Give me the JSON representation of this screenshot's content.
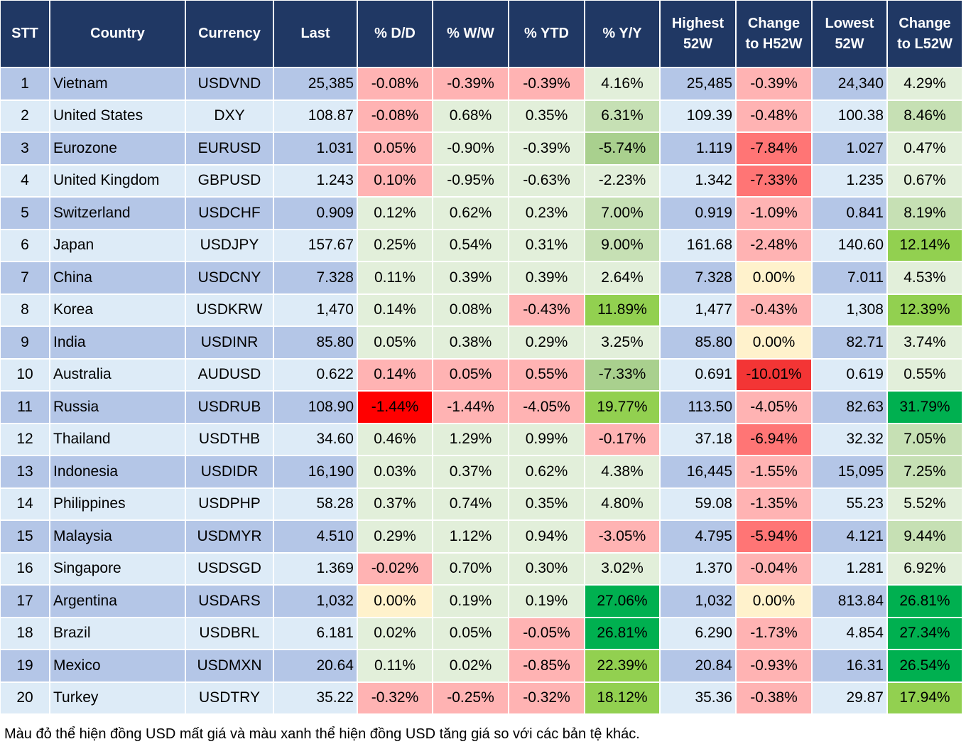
{
  "palette": {
    "P1": "#ffb3b3",
    "P2": "#ff7575",
    "P3": "#f33535",
    "P4": "#ff0000",
    "Y": "#fff2cc",
    "G0": "#e2efda",
    "G1": "#c6e0b4",
    "G2": "#a9d08e",
    "G3": "#92d050",
    "G4": "#00b050",
    "header": "#203864",
    "row_odd": "#b4c6e7",
    "row_even": "#ddebf7"
  },
  "headers": [
    "STT",
    "Country",
    "Currency",
    "Last",
    "% D/D",
    "% W/W",
    "% YTD",
    "% Y/Y",
    "Highest 52W",
    "Change to H52W",
    "Lowest 52W",
    "Change to L52W"
  ],
  "rows": [
    {
      "stt": "1",
      "country": "Vietnam",
      "currency": "USDVND",
      "last": "25,385",
      "dd": "-0.08%",
      "ww": "-0.39%",
      "ytd": "-0.39%",
      "yy": "4.16%",
      "high": "25,485",
      "chh": "-0.39%",
      "low": "24,340",
      "chl": "4.29%",
      "colors": [
        "P1",
        "P1",
        "P1",
        "G0",
        "P1",
        "G0"
      ]
    },
    {
      "stt": "2",
      "country": "United States",
      "currency": "DXY",
      "last": "108.87",
      "dd": "-0.08%",
      "ww": "0.68%",
      "ytd": "0.35%",
      "yy": "6.31%",
      "high": "109.39",
      "chh": "-0.48%",
      "low": "100.38",
      "chl": "8.46%",
      "colors": [
        "P1",
        "G0",
        "G0",
        "G1",
        "P1",
        "G1"
      ]
    },
    {
      "stt": "3",
      "country": "Eurozone",
      "currency": "EURUSD",
      "last": "1.031",
      "dd": "0.05%",
      "ww": "-0.90%",
      "ytd": "-0.39%",
      "yy": "-5.74%",
      "high": "1.119",
      "chh": "-7.84%",
      "low": "1.027",
      "chl": "0.47%",
      "colors": [
        "P1",
        "G0",
        "G0",
        "G2",
        "P2",
        "G0"
      ]
    },
    {
      "stt": "4",
      "country": "United Kingdom",
      "currency": "GBPUSD",
      "last": "1.243",
      "dd": "0.10%",
      "ww": "-0.95%",
      "ytd": "-0.63%",
      "yy": "-2.23%",
      "high": "1.342",
      "chh": "-7.33%",
      "low": "1.235",
      "chl": "0.67%",
      "colors": [
        "P1",
        "G0",
        "G0",
        "G0",
        "P2",
        "G0"
      ]
    },
    {
      "stt": "5",
      "country": "Switzerland",
      "currency": "USDCHF",
      "last": "0.909",
      "dd": "0.12%",
      "ww": "0.62%",
      "ytd": "0.23%",
      "yy": "7.00%",
      "high": "0.919",
      "chh": "-1.09%",
      "low": "0.841",
      "chl": "8.19%",
      "colors": [
        "G0",
        "G0",
        "G0",
        "G1",
        "P1",
        "G1"
      ]
    },
    {
      "stt": "6",
      "country": "Japan",
      "currency": "USDJPY",
      "last": "157.67",
      "dd": "0.25%",
      "ww": "0.54%",
      "ytd": "0.31%",
      "yy": "9.00%",
      "high": "161.68",
      "chh": "-2.48%",
      "low": "140.60",
      "chl": "12.14%",
      "colors": [
        "G0",
        "G0",
        "G0",
        "G1",
        "P1",
        "G3"
      ]
    },
    {
      "stt": "7",
      "country": "China",
      "currency": "USDCNY",
      "last": "7.328",
      "dd": "0.11%",
      "ww": "0.39%",
      "ytd": "0.39%",
      "yy": "2.64%",
      "high": "7.328",
      "chh": "0.00%",
      "low": "7.011",
      "chl": "4.53%",
      "colors": [
        "G0",
        "G0",
        "G0",
        "G0",
        "Y",
        "G0"
      ]
    },
    {
      "stt": "8",
      "country": "Korea",
      "currency": "USDKRW",
      "last": "1,470",
      "dd": "0.14%",
      "ww": "0.08%",
      "ytd": "-0.43%",
      "yy": "11.89%",
      "high": "1,477",
      "chh": "-0.43%",
      "low": "1,308",
      "chl": "12.39%",
      "colors": [
        "G0",
        "G0",
        "P1",
        "G3",
        "P1",
        "G3"
      ]
    },
    {
      "stt": "9",
      "country": "India",
      "currency": "USDINR",
      "last": "85.80",
      "dd": "0.05%",
      "ww": "0.38%",
      "ytd": "0.29%",
      "yy": "3.25%",
      "high": "85.80",
      "chh": "0.00%",
      "low": "82.71",
      "chl": "3.74%",
      "colors": [
        "G0",
        "G0",
        "G0",
        "G0",
        "Y",
        "G0"
      ]
    },
    {
      "stt": "10",
      "country": "Australia",
      "currency": "AUDUSD",
      "last": "0.622",
      "dd": "0.14%",
      "ww": "0.05%",
      "ytd": "0.55%",
      "yy": "-7.33%",
      "high": "0.691",
      "chh": "-10.01%",
      "low": "0.619",
      "chl": "0.55%",
      "colors": [
        "P1",
        "P1",
        "P1",
        "G2",
        "P3",
        "G0"
      ]
    },
    {
      "stt": "11",
      "country": "Russia",
      "currency": "USDRUB",
      "last": "108.90",
      "dd": "-1.44%",
      "ww": "-1.44%",
      "ytd": "-4.05%",
      "yy": "19.77%",
      "high": "113.50",
      "chh": "-4.05%",
      "low": "82.63",
      "chl": "31.79%",
      "colors": [
        "P4",
        "P1",
        "P1",
        "G3",
        "P1",
        "G4"
      ]
    },
    {
      "stt": "12",
      "country": "Thailand",
      "currency": "USDTHB",
      "last": "34.60",
      "dd": "0.46%",
      "ww": "1.29%",
      "ytd": "0.99%",
      "yy": "-0.17%",
      "high": "37.18",
      "chh": "-6.94%",
      "low": "32.32",
      "chl": "7.05%",
      "colors": [
        "G0",
        "G0",
        "G0",
        "P1",
        "P2",
        "G1"
      ]
    },
    {
      "stt": "13",
      "country": "Indonesia",
      "currency": "USDIDR",
      "last": "16,190",
      "dd": "0.03%",
      "ww": "0.37%",
      "ytd": "0.62%",
      "yy": "4.38%",
      "high": "16,445",
      "chh": "-1.55%",
      "low": "15,095",
      "chl": "7.25%",
      "colors": [
        "G0",
        "G0",
        "G0",
        "G0",
        "P1",
        "G1"
      ]
    },
    {
      "stt": "14",
      "country": "Philippines",
      "currency": "USDPHP",
      "last": "58.28",
      "dd": "0.37%",
      "ww": "0.74%",
      "ytd": "0.35%",
      "yy": "4.80%",
      "high": "59.08",
      "chh": "-1.35%",
      "low": "55.23",
      "chl": "5.52%",
      "colors": [
        "G0",
        "G0",
        "G0",
        "G0",
        "P1",
        "G0"
      ]
    },
    {
      "stt": "15",
      "country": "Malaysia",
      "currency": "USDMYR",
      "last": "4.510",
      "dd": "0.29%",
      "ww": "1.12%",
      "ytd": "0.94%",
      "yy": "-3.05%",
      "high": "4.795",
      "chh": "-5.94%",
      "low": "4.121",
      "chl": "9.44%",
      "colors": [
        "G0",
        "G0",
        "G0",
        "P1",
        "P2",
        "G1"
      ]
    },
    {
      "stt": "16",
      "country": "Singapore",
      "currency": "USDSGD",
      "last": "1.369",
      "dd": "-0.02%",
      "ww": "0.70%",
      "ytd": "0.30%",
      "yy": "3.02%",
      "high": "1.370",
      "chh": "-0.04%",
      "low": "1.281",
      "chl": "6.92%",
      "colors": [
        "P1",
        "G0",
        "G0",
        "G0",
        "P1",
        "G0"
      ]
    },
    {
      "stt": "17",
      "country": "Argentina",
      "currency": "USDARS",
      "last": "1,032",
      "dd": "0.00%",
      "ww": "0.19%",
      "ytd": "0.19%",
      "yy": "27.06%",
      "high": "1,032",
      "chh": "0.00%",
      "low": "813.84",
      "chl": "26.81%",
      "colors": [
        "Y",
        "G0",
        "G0",
        "G4",
        "Y",
        "G4"
      ]
    },
    {
      "stt": "18",
      "country": "Brazil",
      "currency": "USDBRL",
      "last": "6.181",
      "dd": "0.02%",
      "ww": "0.05%",
      "ytd": "-0.05%",
      "yy": "26.81%",
      "high": "6.290",
      "chh": "-1.73%",
      "low": "4.854",
      "chl": "27.34%",
      "colors": [
        "G0",
        "G0",
        "P1",
        "G4",
        "P1",
        "G4"
      ]
    },
    {
      "stt": "19",
      "country": "Mexico",
      "currency": "USDMXN",
      "last": "20.64",
      "dd": "0.11%",
      "ww": "0.02%",
      "ytd": "-0.85%",
      "yy": "22.39%",
      "high": "20.84",
      "chh": "-0.93%",
      "low": "16.31",
      "chl": "26.54%",
      "colors": [
        "G0",
        "G0",
        "P1",
        "G3",
        "P1",
        "G4"
      ]
    },
    {
      "stt": "20",
      "country": "Turkey",
      "currency": "USDTRY",
      "last": "35.22",
      "dd": "-0.32%",
      "ww": "-0.25%",
      "ytd": "-0.32%",
      "yy": "18.12%",
      "high": "35.36",
      "chh": "-0.38%",
      "low": "29.87",
      "chl": "17.94%",
      "colors": [
        "P1",
        "P1",
        "P1",
        "G3",
        "P1",
        "G3"
      ]
    }
  ],
  "footnote": "Màu đỏ thể hiện đồng USD mất giá và màu xanh thể hiện đồng USD tăng giá so với các bản tệ khác."
}
